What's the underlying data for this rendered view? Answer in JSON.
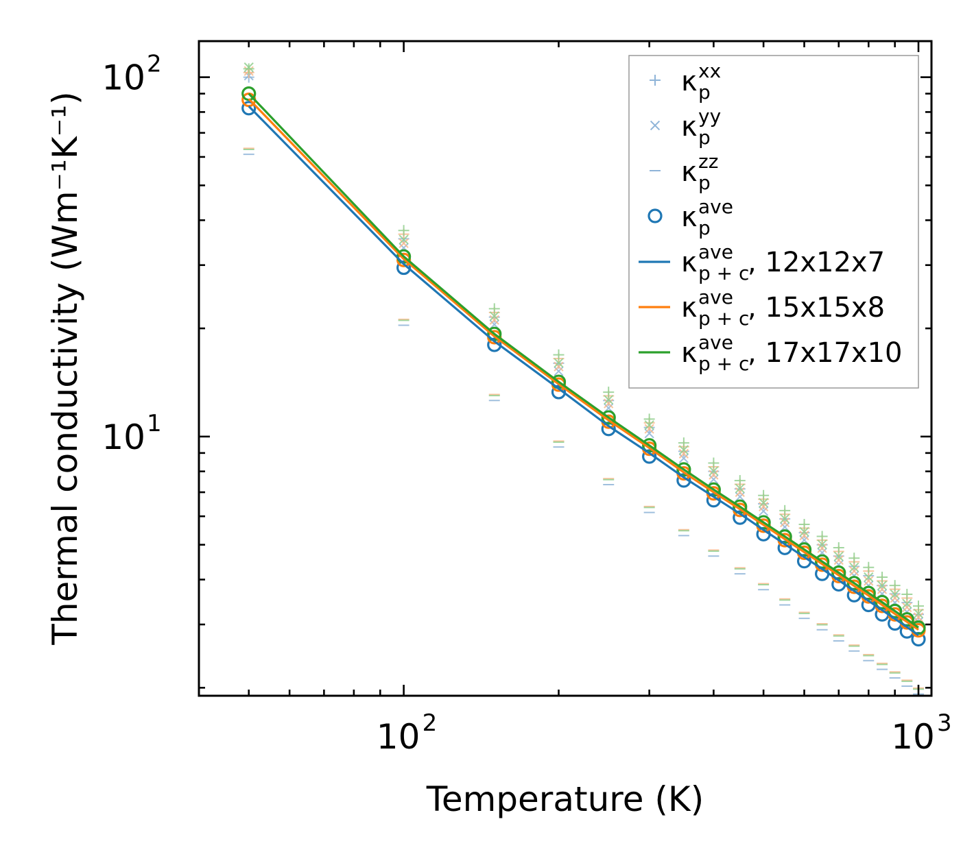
{
  "chart_data": {
    "type": "scatter",
    "xscale": "log",
    "yscale": "log",
    "xlabel": "Temperature (K)",
    "ylabel": "Thermal conductivity (Wm⁻¹K⁻¹)",
    "xlim": [
      40,
      1060
    ],
    "ylim": [
      1.9,
      126
    ],
    "xticks": [
      {
        "base": "10",
        "exp": "2",
        "value": 100
      },
      {
        "base": "10",
        "exp": "3",
        "value": 1000
      }
    ],
    "yticks": [
      {
        "base": "10",
        "exp": "1",
        "value": 10
      },
      {
        "base": "10",
        "exp": "2",
        "value": 100
      }
    ],
    "x": [
      50,
      100,
      150,
      200,
      250,
      300,
      350,
      400,
      450,
      500,
      550,
      600,
      650,
      700,
      750,
      800,
      850,
      900,
      950,
      1000
    ],
    "series": [
      {
        "name": "kxx",
        "label": "κ",
        "sub": "p",
        "sup": "xx",
        "marker": "plus",
        "color": "#8fb4d8",
        "values": [
          100,
          35.5,
          21.5,
          16.0,
          12.6,
          10.6,
          9.1,
          8.0,
          7.15,
          6.5,
          5.9,
          5.4,
          5.0,
          4.65,
          4.35,
          4.1,
          3.85,
          3.65,
          3.45,
          3.2
        ]
      },
      {
        "name": "kyy",
        "label": "κ",
        "sub": "p",
        "sup": "yy",
        "marker": "cross",
        "color": "#8fb4d8",
        "values": [
          101,
          33.5,
          20.5,
          15.2,
          12.0,
          10.2,
          8.7,
          7.6,
          6.8,
          6.2,
          5.6,
          5.15,
          4.75,
          4.4,
          4.1,
          3.85,
          3.65,
          3.45,
          3.25,
          3.05
        ]
      },
      {
        "name": "kzz",
        "label": "κ",
        "sub": "p",
        "sup": "zz",
        "marker": "hline",
        "color": "#8fb4d8",
        "values": [
          61,
          20.4,
          12.6,
          9.35,
          7.35,
          6.15,
          5.3,
          4.65,
          4.15,
          3.75,
          3.4,
          3.12,
          2.9,
          2.7,
          2.53,
          2.38,
          2.25,
          2.13,
          2.02,
          1.92
        ]
      },
      {
        "name": "kave",
        "label": "κ",
        "sub": "p",
        "sup": "ave",
        "marker": "circle",
        "color": "#1f77b4",
        "values": [
          82,
          29.5,
          18.0,
          13.3,
          10.5,
          8.8,
          7.55,
          6.65,
          5.95,
          5.35,
          4.9,
          4.5,
          4.15,
          3.88,
          3.62,
          3.4,
          3.2,
          3.02,
          2.87,
          2.73
        ]
      },
      {
        "name": "kpc_12",
        "label": "κ",
        "sub": "p + c",
        "sup": "ave",
        "suffix": ", 12x12x7",
        "marker": "line",
        "color": "#1f77b4",
        "values": [
          83,
          30.2,
          18.4,
          13.6,
          10.7,
          9.0,
          7.7,
          6.8,
          6.1,
          5.5,
          5.02,
          4.62,
          4.28,
          3.98,
          3.72,
          3.49,
          3.29,
          3.11,
          2.95,
          2.8
        ]
      },
      {
        "name": "kpc_15",
        "label": "κ",
        "sub": "p + c",
        "sup": "ave",
        "suffix": ", 15x15x8",
        "marker": "line",
        "color": "#ff7f0e",
        "values": [
          87,
          31.2,
          19.0,
          14.0,
          11.1,
          9.3,
          7.95,
          7.0,
          6.28,
          5.68,
          5.18,
          4.77,
          4.42,
          4.11,
          3.84,
          3.61,
          3.4,
          3.21,
          3.05,
          2.9
        ]
      },
      {
        "name": "kpc_17",
        "label": "κ",
        "sub": "p + c",
        "sup": "ave",
        "suffix": ", 17x17x10",
        "marker": "line",
        "color": "#2ca02c",
        "values": [
          90,
          31.7,
          19.3,
          14.2,
          11.3,
          9.45,
          8.1,
          7.12,
          6.38,
          5.77,
          5.27,
          4.85,
          4.49,
          4.18,
          3.91,
          3.67,
          3.46,
          3.27,
          3.1,
          2.94
        ]
      }
    ],
    "grid_variants": [
      {
        "name": "12x12x7",
        "color": "#8fb4d8",
        "scale": 1.0,
        "circles": [
          82,
          29.5,
          18.0,
          13.3,
          10.5,
          8.8,
          7.55,
          6.65,
          5.95,
          5.35,
          4.9,
          4.5,
          4.15,
          3.88,
          3.62,
          3.4,
          3.2,
          3.02,
          2.87,
          2.73
        ]
      },
      {
        "name": "15x15x8",
        "color": "#f9b98a",
        "scale": 1.035,
        "circles": [
          86.5,
          31.0,
          18.9,
          13.95,
          11.0,
          9.25,
          7.9,
          6.95,
          6.25,
          5.65,
          5.15,
          4.75,
          4.4,
          4.09,
          3.82,
          3.59,
          3.38,
          3.2,
          3.04,
          2.89
        ]
      },
      {
        "name": "17x17x10",
        "color": "#92cf8f",
        "scale": 1.06,
        "circles": [
          90,
          31.7,
          19.3,
          14.2,
          11.3,
          9.45,
          8.1,
          7.12,
          6.38,
          5.77,
          5.27,
          4.85,
          4.49,
          4.18,
          3.91,
          3.67,
          3.46,
          3.27,
          3.1,
          2.94
        ]
      }
    ],
    "legend": "top-right"
  }
}
